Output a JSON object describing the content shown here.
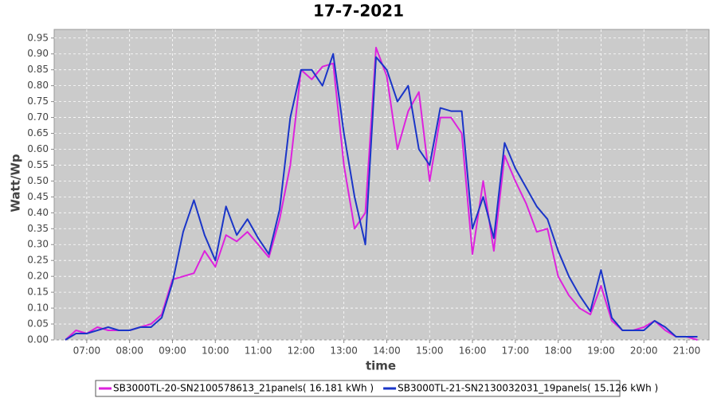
{
  "chart_data": {
    "type": "line",
    "title": "17-7-2021",
    "x_label": "time",
    "y_label": "Watt/Wp",
    "x": [
      6.5,
      6.75,
      7,
      7.25,
      7.5,
      7.75,
      8,
      8.25,
      8.5,
      8.75,
      9,
      9.25,
      9.5,
      9.75,
      10,
      10.25,
      10.5,
      10.75,
      11,
      11.25,
      11.5,
      11.75,
      12,
      12.25,
      12.5,
      12.75,
      13,
      13.25,
      13.5,
      13.75,
      14,
      14.25,
      14.5,
      14.75,
      15,
      15.25,
      15.5,
      15.75,
      16,
      16.25,
      16.5,
      16.75,
      17,
      17.25,
      17.5,
      17.75,
      18,
      18.25,
      18.5,
      18.75,
      19,
      19.25,
      19.5,
      19.75,
      20,
      20.25,
      20.5,
      20.75,
      21,
      21.25
    ],
    "series": [
      {
        "name": "SB3000TL-20-SN2100578613_21panels( 16.181 kWh )",
        "color": "#dd22dd",
        "values": [
          0,
          0.03,
          0.02,
          0.04,
          0.03,
          0.03,
          0.03,
          0.04,
          0.05,
          0.08,
          0.19,
          0.2,
          0.21,
          0.28,
          0.23,
          0.33,
          0.31,
          0.34,
          0.3,
          0.26,
          0.38,
          0.55,
          0.85,
          0.82,
          0.86,
          0.87,
          0.55,
          0.35,
          0.4,
          0.92,
          0.83,
          0.6,
          0.72,
          0.78,
          0.5,
          0.7,
          0.7,
          0.65,
          0.27,
          0.5,
          0.28,
          0.58,
          0.5,
          0.43,
          0.34,
          0.35,
          0.2,
          0.14,
          0.1,
          0.08,
          0.17,
          0.06,
          0.03,
          0.03,
          0.04,
          0.06,
          0.03,
          0.01,
          0.01,
          0
        ]
      },
      {
        "name": "SB3000TL-21-SN2130032031_19panels( 15.126 kWh )",
        "color": "#1a35c8",
        "values": [
          0,
          0.02,
          0.02,
          0.03,
          0.04,
          0.03,
          0.03,
          0.04,
          0.04,
          0.07,
          0.18,
          0.34,
          0.44,
          0.33,
          0.25,
          0.42,
          0.33,
          0.38,
          0.32,
          0.27,
          0.41,
          0.7,
          0.85,
          0.85,
          0.8,
          0.9,
          0.65,
          0.45,
          0.3,
          0.89,
          0.85,
          0.75,
          0.8,
          0.6,
          0.55,
          0.73,
          0.72,
          0.72,
          0.35,
          0.45,
          0.32,
          0.62,
          0.54,
          0.48,
          0.42,
          0.38,
          0.28,
          0.2,
          0.14,
          0.09,
          0.22,
          0.07,
          0.03,
          0.03,
          0.03,
          0.06,
          0.04,
          0.01,
          0.01,
          0.01
        ]
      }
    ],
    "xlim": [
      6.24,
      21.52
    ],
    "ylim": [
      0,
      0.977
    ],
    "xticks": [
      {
        "value": 7,
        "label": "07:00"
      },
      {
        "value": 8,
        "label": "08:00"
      },
      {
        "value": 9,
        "label": "09:00"
      },
      {
        "value": 10,
        "label": "10:00"
      },
      {
        "value": 11,
        "label": "11:00"
      },
      {
        "value": 12,
        "label": "12:00"
      },
      {
        "value": 13,
        "label": "13:00"
      },
      {
        "value": 14,
        "label": "14:00"
      },
      {
        "value": 15,
        "label": "15:00"
      },
      {
        "value": 16,
        "label": "16:00"
      },
      {
        "value": 17,
        "label": "17:00"
      },
      {
        "value": 18,
        "label": "18:00"
      },
      {
        "value": 19,
        "label": "19:00"
      },
      {
        "value": 20,
        "label": "20:00"
      },
      {
        "value": 21,
        "label": "21:00"
      }
    ],
    "yticks": [
      {
        "value": 0,
        "label": "0.00"
      },
      0.05,
      {
        "value": 0.1,
        "label": "0.10"
      },
      0.15,
      {
        "value": 0.2,
        "label": "0.20"
      },
      0.25,
      {
        "value": 0.3,
        "label": "0.30"
      },
      0.35,
      {
        "value": 0.4,
        "label": "0.40"
      },
      0.45,
      {
        "value": 0.5,
        "label": "0.50"
      },
      0.55,
      {
        "value": 0.6,
        "label": "0.60"
      },
      0.65,
      {
        "value": 0.7,
        "label": "0.70"
      },
      0.75,
      {
        "value": 0.8,
        "label": "0.80"
      },
      0.85,
      {
        "value": 0.9,
        "label": "0.90"
      },
      0.95
    ],
    "grid": true
  }
}
